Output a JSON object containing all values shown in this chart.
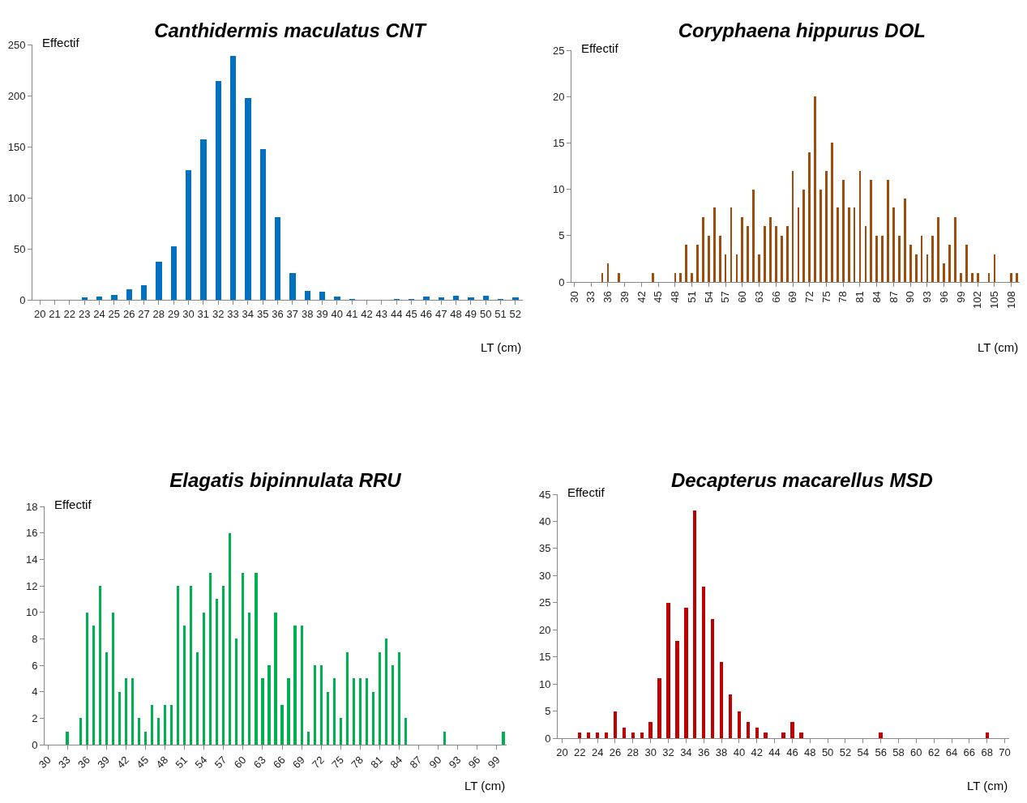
{
  "chart_data": [
    {
      "type": "bar",
      "title": "Canthidermis maculatus CNT",
      "xlabel": "LT (cm)",
      "ylabel": "Effectif",
      "color": "#0070c0",
      "ylim": [
        0,
        250
      ],
      "yticks": [
        0,
        50,
        100,
        150,
        200,
        250
      ],
      "categories": [
        "20",
        "21",
        "22",
        "23",
        "24",
        "25",
        "26",
        "27",
        "28",
        "29",
        "30",
        "31",
        "32",
        "33",
        "34",
        "35",
        "36",
        "37",
        "38",
        "39",
        "40",
        "41",
        "42",
        "43",
        "44",
        "45",
        "46",
        "47",
        "48",
        "49",
        "50",
        "51",
        "52"
      ],
      "values": [
        0,
        0,
        0,
        2,
        3,
        5,
        10,
        14,
        37,
        52,
        127,
        157,
        214,
        239,
        198,
        148,
        81,
        26,
        9,
        8,
        3,
        1,
        0,
        0,
        1,
        1,
        3,
        2,
        4,
        2,
        4,
        1,
        2
      ]
    },
    {
      "type": "bar",
      "title": "Coryphaena hippurus DOL",
      "xlabel": "LT (cm)",
      "ylabel": "Effectif",
      "color": "#a04c0c",
      "ylim": [
        0,
        25
      ],
      "yticks": [
        0,
        5,
        10,
        15,
        20,
        25
      ],
      "categories": [
        "30",
        null,
        null,
        "33",
        null,
        null,
        "36",
        null,
        null,
        "39",
        null,
        null,
        "42",
        null,
        null,
        "45",
        null,
        null,
        "48",
        null,
        null,
        "51",
        null,
        null,
        "54",
        null,
        null,
        "57",
        null,
        null,
        "60",
        null,
        null,
        "63",
        null,
        null,
        "66",
        null,
        null,
        "69",
        null,
        null,
        "72",
        null,
        null,
        "75",
        null,
        null,
        "78",
        null,
        null,
        "81",
        null,
        null,
        "84",
        null,
        null,
        "87",
        null,
        null,
        "90",
        null,
        null,
        "93",
        null,
        null,
        "96",
        null,
        null,
        "99",
        null,
        null,
        "102",
        null,
        null,
        "105",
        null,
        null,
        "108",
        null
      ],
      "values": [
        0,
        0,
        0,
        0,
        0,
        1,
        2,
        0,
        1,
        0,
        0,
        0,
        0,
        0,
        1,
        0,
        0,
        0,
        1,
        1,
        4,
        1,
        4,
        7,
        5,
        8,
        5,
        3,
        8,
        3,
        7,
        6,
        10,
        3,
        6,
        7,
        6,
        5,
        6,
        12,
        8,
        10,
        14,
        20,
        10,
        12,
        15,
        8,
        11,
        8,
        8,
        12,
        6,
        11,
        5,
        5,
        11,
        8,
        5,
        9,
        4,
        3,
        5,
        3,
        5,
        7,
        2,
        4,
        7,
        1,
        4,
        1,
        1,
        0,
        1,
        3,
        0,
        0,
        1,
        1
      ]
    },
    {
      "type": "bar",
      "title": "Elagatis bipinnulata RRU",
      "xlabel": "LT (cm)",
      "ylabel": "Effectif",
      "color": "#00b050",
      "ylim": [
        0,
        18
      ],
      "yticks": [
        0,
        2,
        4,
        6,
        8,
        10,
        12,
        14,
        16,
        18
      ],
      "categories": [
        "30",
        null,
        null,
        "33",
        null,
        null,
        "36",
        null,
        null,
        "39",
        null,
        null,
        "42",
        null,
        null,
        "45",
        null,
        null,
        "48",
        null,
        null,
        "51",
        null,
        null,
        "54",
        null,
        null,
        "57",
        null,
        null,
        "60",
        null,
        null,
        "63",
        null,
        null,
        "66",
        null,
        null,
        "69",
        null,
        null,
        "72",
        null,
        null,
        "75",
        null,
        null,
        "78",
        null,
        null,
        "81",
        null,
        null,
        "84",
        null,
        null,
        "87",
        null,
        null,
        "90",
        null,
        null,
        "93",
        null,
        null,
        "96",
        null,
        null,
        "99",
        null
      ],
      "values": [
        0,
        0,
        0,
        1,
        0,
        2,
        10,
        9,
        12,
        7,
        10,
        4,
        5,
        5,
        2,
        1,
        3,
        2,
        3,
        3,
        12,
        9,
        12,
        7,
        10,
        13,
        11,
        12,
        16,
        8,
        13,
        10,
        13,
        5,
        6,
        10,
        3,
        5,
        9,
        9,
        1,
        6,
        6,
        4,
        5,
        2,
        7,
        5,
        5,
        5,
        4,
        7,
        8,
        6,
        7,
        2,
        0,
        0,
        0,
        0,
        0,
        1,
        0,
        0,
        0,
        0,
        0,
        0,
        0,
        0,
        1
      ]
    },
    {
      "type": "bar",
      "title": "Decapterus macarellus MSD",
      "xlabel": "LT (cm)",
      "ylabel": "Effectif",
      "color": "#c00000",
      "ylim": [
        0,
        45
      ],
      "yticks": [
        0,
        5,
        10,
        15,
        20,
        25,
        30,
        35,
        40,
        45
      ],
      "categories": [
        "20",
        null,
        "22",
        null,
        "24",
        null,
        "26",
        null,
        "28",
        null,
        "30",
        null,
        "32",
        null,
        "34",
        null,
        "36",
        null,
        "38",
        null,
        "40",
        null,
        "42",
        null,
        "44",
        null,
        "46",
        null,
        "48",
        null,
        "50",
        null,
        "52",
        null,
        "54",
        null,
        "56",
        null,
        "58",
        null,
        "60",
        null,
        "62",
        null,
        "64",
        null,
        "66",
        null,
        "68",
        null,
        "70"
      ],
      "values": [
        0,
        0,
        1,
        1,
        1,
        1,
        5,
        2,
        1,
        1,
        3,
        11,
        25,
        18,
        24,
        42,
        28,
        22,
        14,
        8,
        5,
        3,
        2,
        1,
        0,
        1,
        3,
        1,
        0,
        0,
        0,
        0,
        0,
        0,
        0,
        0,
        1,
        0,
        0,
        0,
        0,
        0,
        0,
        0,
        0,
        0,
        0,
        0,
        1,
        0,
        0
      ]
    }
  ]
}
